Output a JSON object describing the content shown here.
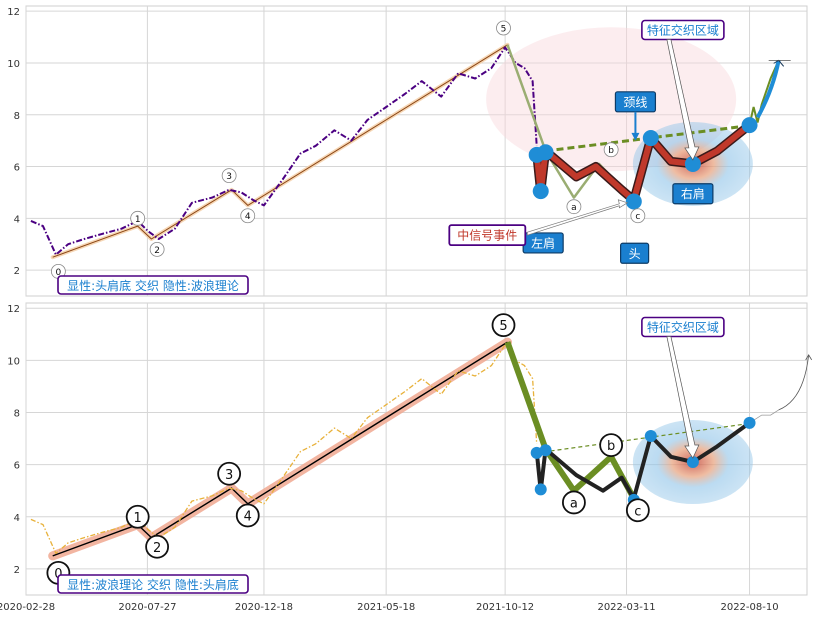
{
  "chart_data": [
    {
      "type": "line",
      "title": "",
      "xlabel": "",
      "ylabel": "",
      "xlim": [
        "2020-02-28",
        "2022-10-20"
      ],
      "ylim": [
        1,
        12.2
      ],
      "yticks": [
        2,
        4,
        6,
        8,
        10,
        12
      ],
      "grid": true,
      "caption": "显性:头肩底 交织 隐性:波浪理论",
      "colors": {
        "price": "#4b0082",
        "trend_outline": "#8b4513",
        "trend_fill": "#f5d0a9",
        "wave_light": "#9aad72",
        "neckline": "#6b8e23",
        "pattern": "#c0392b",
        "node": "#1f8dd6",
        "label_bg": "#1a7fcf"
      },
      "series": [
        {
          "name": "price",
          "style": "dash-dot",
          "x": [
            "2020-03-05",
            "2020-03-20",
            "2020-04-05",
            "2020-04-20",
            "2020-05-10",
            "2020-06-01",
            "2020-06-25",
            "2020-07-15",
            "2020-07-28",
            "2020-08-10",
            "2020-08-30",
            "2020-09-20",
            "2020-10-15",
            "2020-11-05",
            "2020-11-20",
            "2020-12-05",
            "2020-12-18",
            "2021-01-10",
            "2021-02-01",
            "2021-02-20",
            "2021-03-15",
            "2021-04-05",
            "2021-04-25",
            "2021-05-18",
            "2021-06-10",
            "2021-07-01",
            "2021-07-25",
            "2021-08-15",
            "2021-09-05",
            "2021-09-25",
            "2021-10-12",
            "2021-10-25",
            "2021-11-05",
            "2021-11-15",
            "2021-11-20"
          ],
          "y": [
            3.9,
            3.7,
            2.6,
            3.0,
            3.2,
            3.4,
            3.6,
            3.9,
            3.5,
            3.2,
            3.6,
            4.6,
            4.8,
            5.1,
            5.0,
            4.7,
            4.5,
            5.5,
            6.5,
            6.8,
            7.4,
            7.0,
            7.8,
            8.3,
            8.8,
            9.3,
            8.7,
            9.6,
            9.4,
            9.8,
            10.6,
            10.0,
            9.8,
            9.3,
            6.8
          ]
        },
        {
          "name": "wave_light",
          "x": [
            "2021-10-15",
            "2021-12-01",
            "2022-01-05",
            "2022-02-05",
            "2022-03-20"
          ],
          "y": [
            10.7,
            6.6,
            4.8,
            6.1,
            4.7
          ]
        },
        {
          "name": "neckline",
          "style": "dashed",
          "x": [
            "2021-12-01",
            "2022-08-15"
          ],
          "y": [
            6.6,
            7.6
          ]
        },
        {
          "name": "head_shoulders",
          "x": [
            "2021-11-20",
            "2021-11-25",
            "2021-12-01",
            "2022-01-08",
            "2022-02-01",
            "2022-03-05",
            "2022-03-20",
            "2022-04-10",
            "2022-05-05",
            "2022-06-01",
            "2022-07-01",
            "2022-08-10"
          ],
          "y": [
            6.5,
            5.0,
            6.6,
            5.6,
            6.0,
            5.1,
            4.7,
            7.1,
            6.2,
            6.1,
            6.6,
            7.6
          ]
        },
        {
          "name": "tail",
          "x": [
            "2022-08-10",
            "2022-08-15",
            "2022-08-20",
            "2022-08-25",
            "2022-09-05",
            "2022-09-15"
          ],
          "y": [
            7.6,
            8.3,
            7.7,
            8.4,
            9.4,
            10.1
          ]
        }
      ],
      "trend": {
        "x": [
          "2020-04-01",
          "2020-07-15",
          "2020-08-01",
          "2020-11-08",
          "2020-11-28",
          "2021-10-15"
        ],
        "y": [
          2.5,
          3.7,
          3.2,
          5.1,
          4.5,
          10.7
        ]
      },
      "wave_labels": [
        {
          "label": "0",
          "x": "2020-04-08",
          "y": 1.95
        },
        {
          "label": "1",
          "x": "2020-07-15",
          "y": 4.0
        },
        {
          "label": "2",
          "x": "2020-08-08",
          "y": 2.8
        },
        {
          "label": "3",
          "x": "2020-11-05",
          "y": 5.65
        },
        {
          "label": "4",
          "x": "2020-11-28",
          "y": 4.1
        },
        {
          "label": "5",
          "x": "2021-10-10",
          "y": 11.35
        },
        {
          "label": "a",
          "x": "2022-01-05",
          "y": 4.45
        },
        {
          "label": "b",
          "x": "2022-02-20",
          "y": 6.65
        },
        {
          "label": "c",
          "x": "2022-03-25",
          "y": 4.1
        }
      ],
      "nodes": [
        {
          "x": "2021-11-20",
          "y": 6.45
        },
        {
          "x": "2021-11-25",
          "y": 5.05
        },
        {
          "x": "2021-12-01",
          "y": 6.55
        },
        {
          "x": "2022-03-20",
          "y": 4.65
        },
        {
          "x": "2022-04-10",
          "y": 7.1
        },
        {
          "x": "2022-06-01",
          "y": 6.1
        },
        {
          "x": "2022-08-10",
          "y": 7.6
        }
      ],
      "annotations": {
        "feature": "特征交织区域",
        "neckline": "颈线",
        "left_shoulder": "左肩",
        "head": "头",
        "right_shoulder": "右肩",
        "citic": "中信号事件"
      }
    },
    {
      "type": "line",
      "title": "",
      "xlabel": "",
      "ylabel": "",
      "xlim": [
        "2020-02-28",
        "2022-10-20"
      ],
      "ylim": [
        1,
        12.2
      ],
      "yticks": [
        2,
        4,
        6,
        8,
        10,
        12
      ],
      "xticks": [
        "2020-02-28",
        "2020-07-27",
        "2020-12-18",
        "2021-05-18",
        "2021-10-12",
        "2022-03-11",
        "2022-08-10"
      ],
      "grid": true,
      "caption": "显性:波浪理论 交织 隐性:头肩底",
      "colors": {
        "price": "#e8b13a",
        "trend_outline": "#000000",
        "trend_fill": "#f0a890",
        "wave_c": "#6b8e23",
        "neckline": "#6b8e23",
        "pattern": "#222222",
        "node": "#1f8dd6"
      },
      "series": [
        {
          "name": "price",
          "style": "dash-dot",
          "x": [
            "2020-03-05",
            "2020-03-20",
            "2020-04-05",
            "2020-04-20",
            "2020-05-10",
            "2020-06-01",
            "2020-06-25",
            "2020-07-15",
            "2020-07-28",
            "2020-08-10",
            "2020-08-30",
            "2020-09-20",
            "2020-10-15",
            "2020-11-05",
            "2020-11-20",
            "2020-12-05",
            "2020-12-18",
            "2021-01-10",
            "2021-02-01",
            "2021-02-20",
            "2021-03-15",
            "2021-04-05",
            "2021-04-25",
            "2021-05-18",
            "2021-06-10",
            "2021-07-01",
            "2021-07-25",
            "2021-08-15",
            "2021-09-05",
            "2021-09-25",
            "2021-10-12",
            "2021-10-25",
            "2021-11-05",
            "2021-11-15",
            "2021-11-20"
          ],
          "y": [
            3.9,
            3.7,
            2.6,
            3.0,
            3.2,
            3.4,
            3.6,
            3.9,
            3.5,
            3.2,
            3.6,
            4.6,
            4.8,
            5.1,
            5.0,
            4.7,
            4.5,
            5.5,
            6.5,
            6.8,
            7.4,
            7.0,
            7.8,
            8.3,
            8.8,
            9.3,
            8.7,
            9.6,
            9.4,
            9.8,
            10.6,
            10.0,
            9.8,
            9.3,
            6.8
          ]
        },
        {
          "name": "wave_abc",
          "x": [
            "2021-10-15",
            "2021-12-01",
            "2022-01-05",
            "2022-02-20",
            "2022-03-20"
          ],
          "y": [
            10.7,
            6.6,
            5.0,
            6.3,
            4.7
          ]
        },
        {
          "name": "neckline",
          "style": "dashed",
          "x": [
            "2021-11-20",
            "2022-08-15"
          ],
          "y": [
            6.45,
            7.6
          ]
        },
        {
          "name": "head_shoulders",
          "x": [
            "2021-11-20",
            "2021-11-25",
            "2021-12-01",
            "2022-01-08",
            "2022-02-10",
            "2022-03-05",
            "2022-03-20",
            "2022-04-10",
            "2022-05-05",
            "2022-06-01",
            "2022-07-01",
            "2022-08-10"
          ],
          "y": [
            6.5,
            5.0,
            6.6,
            5.6,
            5.0,
            5.5,
            4.7,
            7.1,
            6.3,
            6.1,
            6.7,
            7.6
          ]
        },
        {
          "name": "tail",
          "x": [
            "2022-08-10",
            "2022-08-25",
            "2022-09-05",
            "2022-09-15"
          ],
          "y": [
            7.6,
            7.9,
            7.9,
            8.1
          ]
        }
      ],
      "trend": {
        "x": [
          "2020-04-01",
          "2020-07-15",
          "2020-08-01",
          "2020-11-08",
          "2020-11-28",
          "2021-10-15"
        ],
        "y": [
          2.5,
          3.7,
          3.2,
          5.1,
          4.5,
          10.7
        ]
      },
      "wave_labels": [
        {
          "label": "0",
          "x": "2020-04-08",
          "y": 1.85
        },
        {
          "label": "1",
          "x": "2020-07-15",
          "y": 4.0
        },
        {
          "label": "2",
          "x": "2020-08-08",
          "y": 2.85
        },
        {
          "label": "3",
          "x": "2020-11-05",
          "y": 5.65
        },
        {
          "label": "4",
          "x": "2020-11-28",
          "y": 4.05
        },
        {
          "label": "5",
          "x": "2021-10-10",
          "y": 11.35
        },
        {
          "label": "a",
          "x": "2022-01-05",
          "y": 4.55
        },
        {
          "label": "b",
          "x": "2022-02-20",
          "y": 6.75
        },
        {
          "label": "c",
          "x": "2022-03-25",
          "y": 4.25
        }
      ],
      "nodes": [
        {
          "x": "2021-11-20",
          "y": 6.45
        },
        {
          "x": "2021-11-25",
          "y": 5.05
        },
        {
          "x": "2021-12-01",
          "y": 6.55
        },
        {
          "x": "2022-03-20",
          "y": 4.65
        },
        {
          "x": "2022-04-10",
          "y": 7.1
        },
        {
          "x": "2022-06-01",
          "y": 6.1
        },
        {
          "x": "2022-08-10",
          "y": 7.6
        }
      ],
      "annotations": {
        "feature": "特征交织区域"
      }
    }
  ]
}
